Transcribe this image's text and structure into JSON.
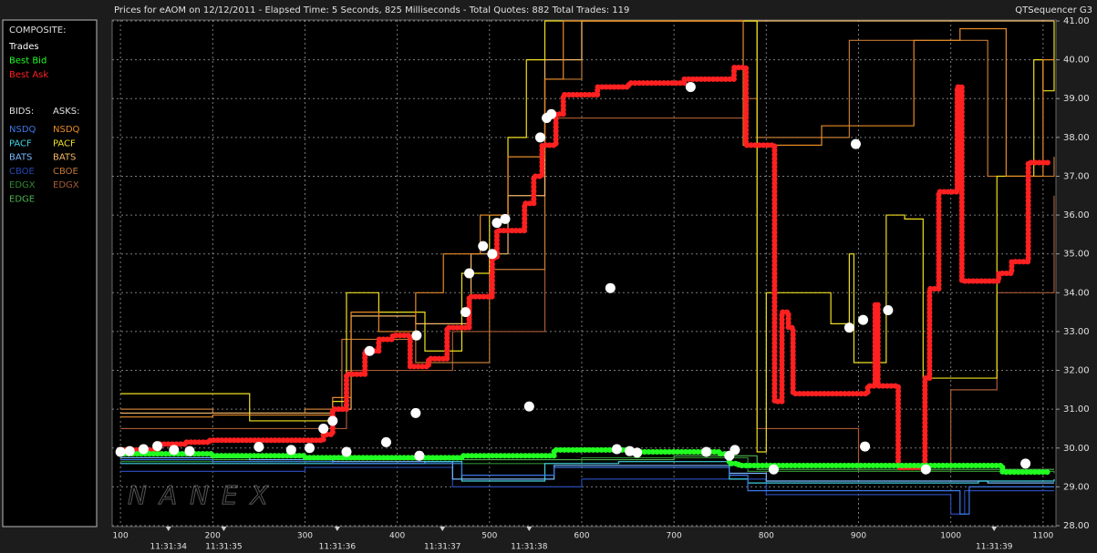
{
  "chart_data": {
    "type": "line",
    "title": "Prices for  eAOM  on  12/12/2011  -  Elapsed Time: 5 Seconds, 825 Milliseconds  -  Total Quotes: 882  Total Trades: 119",
    "title_right": "QTSequencer G3",
    "watermark": "NANEX",
    "xlim": [
      91,
      1114
    ],
    "ylim": [
      28,
      41
    ],
    "xticks": [
      100,
      200,
      300,
      400,
      500,
      600,
      700,
      800,
      900,
      1000,
      1100
    ],
    "yticks": [
      {
        "value": 28,
        "label": "28.00"
      },
      {
        "value": 29,
        "label": "29.00"
      },
      {
        "value": 30,
        "label": "30.00"
      },
      {
        "value": 31,
        "label": "31.00"
      },
      {
        "value": 32,
        "label": "32.00"
      },
      {
        "value": 33,
        "label": "33.00"
      },
      {
        "value": 34,
        "label": "34.00"
      },
      {
        "value": 35,
        "label": "35.00"
      },
      {
        "value": 36,
        "label": "36.00"
      },
      {
        "value": 37,
        "label": "37.00"
      },
      {
        "value": 38,
        "label": "38.00"
      },
      {
        "value": 39,
        "label": "39.00"
      },
      {
        "value": 40,
        "label": "40.00"
      },
      {
        "value": 41,
        "label": "41.00"
      }
    ],
    "time_ticks": [
      {
        "value": 152,
        "label": "11:31:34"
      },
      {
        "value": 212,
        "label": "11:31:35"
      },
      {
        "value": 335,
        "label": "11:31:36"
      },
      {
        "value": 449,
        "label": "11:31:37"
      },
      {
        "value": 543,
        "label": "11:31:38"
      },
      {
        "value": 1047,
        "label": "11:31:39"
      }
    ],
    "grid": true,
    "series_groups": [
      {
        "title": "COMPOSITE:",
        "series": [
          {
            "name": "Trades",
            "color": "#ffffff",
            "style": "dots",
            "x": [
              100,
              110,
              125,
              140,
              158,
              175,
              250,
              285,
              305,
              320,
              330,
              345,
              370,
              388,
              420,
              421,
              424,
              474,
              478,
              493,
              503,
              508,
              517,
              543,
              555,
              562,
              567,
              631,
              638,
              652,
              660,
              718,
              735,
              760,
              766,
              808,
              890,
              897,
              905,
              907,
              932,
              973,
              1081
            ],
            "values": [
              29.9,
              29.92,
              29.97,
              30.05,
              29.95,
              29.92,
              30.03,
              29.95,
              30.0,
              30.5,
              30.7,
              29.9,
              32.5,
              30.15,
              30.9,
              32.9,
              29.8,
              33.5,
              34.5,
              35.2,
              35.0,
              35.8,
              35.9,
              31.07,
              38.0,
              38.5,
              38.6,
              34.12,
              29.97,
              29.92,
              29.88,
              39.3,
              29.9,
              29.8,
              29.95,
              29.45,
              33.1,
              37.83,
              33.3,
              30.04,
              33.55,
              29.45,
              29.6
            ]
          },
          {
            "name": "Best Bid",
            "color": "#20ff20",
            "style": "band",
            "x": [
              100,
              200,
              300,
              400,
              470,
              570,
              650,
              750,
              760,
              770,
              900,
              1050,
              1056,
              1106
            ],
            "values": [
              29.85,
              29.8,
              29.75,
              29.75,
              29.8,
              29.95,
              29.9,
              29.85,
              29.6,
              29.55,
              29.55,
              29.55,
              29.38,
              29.38
            ]
          },
          {
            "name": "Best Ask",
            "color": "#ff2020",
            "style": "band",
            "x": [
              100,
              142,
              170,
              197,
              296,
              320,
              330,
              345,
              365,
              380,
              395,
              414,
              434,
              454,
              478,
              503,
              508,
              538,
              548,
              557,
              572,
              580,
              617,
              651,
              711,
              765,
              778,
              809,
              817,
              824,
              829,
              888,
              910,
              918,
              921,
              943,
              972,
              977,
              987,
              1007,
              1012,
              1052,
              1066,
              1084,
              1106
            ],
            "values": [
              29.95,
              30.1,
              30.15,
              30.2,
              30.2,
              30.35,
              31.0,
              31.9,
              32.5,
              32.8,
              32.9,
              32.1,
              32.3,
              33.1,
              33.9,
              34.9,
              35.6,
              36.3,
              37.0,
              37.8,
              38.6,
              39.1,
              39.3,
              39.4,
              39.5,
              39.8,
              37.8,
              31.2,
              33.5,
              33.1,
              31.4,
              31.4,
              31.6,
              33.7,
              31.6,
              29.5,
              31.8,
              34.1,
              36.6,
              39.3,
              34.3,
              34.5,
              34.8,
              37.35,
              37.35
            ]
          }
        ]
      },
      {
        "title": "BIDS:",
        "series": [
          {
            "name": "NSDQ",
            "color": "#3c78e6",
            "style": "step",
            "x": [
              100,
              200,
              330,
              470,
              570,
              760,
              780,
              990,
              1010,
              1020,
              1112
            ],
            "values": [
              29.7,
              29.65,
              29.6,
              29.3,
              29.5,
              29.3,
              28.9,
              28.9,
              28.3,
              29.0,
              29.0
            ]
          },
          {
            "name": "PACF",
            "color": "#40d0e0",
            "style": "step",
            "x": [
              100,
              330,
              430,
              470,
              560,
              640,
              760,
              780,
              1030,
              1112
            ],
            "values": [
              29.6,
              29.6,
              29.65,
              29.15,
              29.6,
              29.65,
              29.2,
              29.1,
              29.15,
              29.2
            ]
          },
          {
            "name": "BATS",
            "color": "#7ab8ff",
            "style": "step",
            "x": [
              100,
              240,
              330,
              460,
              570,
              760,
              800,
              1040,
              1112
            ],
            "values": [
              29.75,
              29.7,
              29.65,
              29.2,
              29.55,
              29.35,
              29.15,
              29.1,
              29.1
            ]
          },
          {
            "name": "CBOE",
            "color": "#2848b0",
            "style": "step",
            "x": [
              100,
              300,
              460,
              600,
              800,
              1000,
              1015,
              1112
            ],
            "values": [
              29.4,
              29.5,
              29.0,
              29.2,
              28.8,
              28.3,
              28.9,
              28.9
            ]
          },
          {
            "name": "EDGX",
            "color": "#2e8a2e",
            "style": "step",
            "x": [
              100,
              330,
              600,
              780,
              1112
            ],
            "values": [
              29.65,
              29.6,
              29.75,
              29.4,
              29.35
            ]
          },
          {
            "name": "EDGE",
            "color": "#50b050",
            "style": "step",
            "x": [
              100,
              330,
              700,
              790,
              1112
            ],
            "values": [
              29.7,
              29.7,
              29.8,
              29.45,
              29.45
            ]
          }
        ]
      },
      {
        "title": "ASKS:",
        "series": [
          {
            "name": "NSDQ",
            "color": "#e88a28",
            "style": "step",
            "x": [
              100,
              200,
              310,
              330,
              350,
              380,
              420,
              450,
              490,
              520,
              560,
              580,
              770,
              775,
              850,
              860,
              950,
              960,
              1010,
              1060,
              1100,
              1112
            ],
            "values": [
              30.8,
              30.85,
              30.85,
              31.3,
              33.5,
              33.0,
              34.0,
              35.0,
              36.0,
              37.5,
              39.5,
              41.0,
              41.0,
              37.8,
              37.8,
              38.3,
              38.3,
              40.5,
              40.8,
              37.0,
              40.0,
              40.0
            ]
          },
          {
            "name": "PACF",
            "color": "#f0e020",
            "style": "step",
            "x": [
              100,
              240,
              330,
              345,
              380,
              430,
              470,
              500,
              520,
              540,
              560,
              780,
              790,
              800,
              870,
              890,
              895,
              930,
              950,
              970,
              1050,
              1090,
              1100,
              1112
            ],
            "values": [
              31.4,
              30.7,
              31.2,
              34.0,
              33.5,
              32.5,
              34.5,
              36.0,
              38.0,
              40.0,
              41.0,
              41.0,
              29.9,
              34.0,
              33.2,
              35.0,
              32.2,
              36.0,
              35.9,
              31.8,
              37.0,
              40.0,
              39.2,
              41.0
            ]
          },
          {
            "name": "BATS",
            "color": "#f4b868",
            "style": "step",
            "x": [
              100,
              330,
              350,
              420,
              480,
              520,
              560,
              600,
              1112
            ],
            "values": [
              30.9,
              31.0,
              33.4,
              33.2,
              35.0,
              36.5,
              40.0,
              41.0,
              41.0
            ]
          },
          {
            "name": "CBOE",
            "color": "#c47a34",
            "style": "step",
            "x": [
              100,
              190,
              200,
              300,
              340,
              420,
              500,
              560,
              600,
              780,
              790,
              880,
              890,
              1000,
              1040,
              1112
            ],
            "values": [
              31.0,
              31.0,
              30.9,
              31.0,
              32.8,
              32.2,
              34.6,
              39.5,
              41.0,
              41.0,
              38.0,
              38.0,
              40.5,
              40.5,
              37.0,
              37.5
            ]
          },
          {
            "name": "EDGX",
            "color": "#a85a36",
            "style": "step",
            "x": [
              100,
              330,
              345,
              460,
              560,
              780,
              790,
              900,
              1000,
              1050,
              1112
            ],
            "values": [
              30.5,
              30.5,
              32.0,
              33.0,
              38.5,
              39.0,
              30.5,
              29.4,
              31.5,
              34.0,
              36.5
            ]
          }
        ]
      }
    ]
  }
}
